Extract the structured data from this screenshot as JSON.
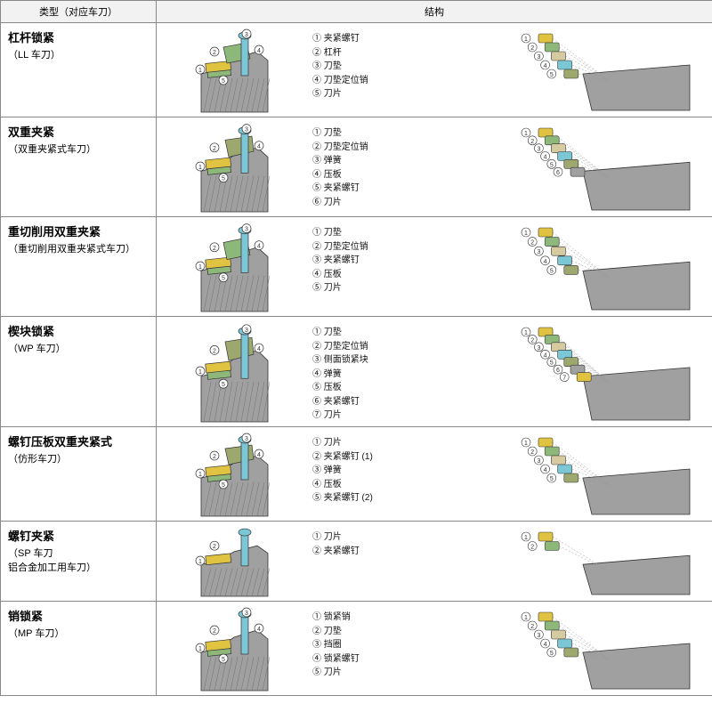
{
  "headers": {
    "type": "类型（对应车刀）",
    "structure": "结构"
  },
  "colors": {
    "yellow": "#e0c340",
    "cyan": "#7bc7d6",
    "green": "#8db87a",
    "gray": "#a0a0a0",
    "dark": "#4a4a4a",
    "outline": "#333",
    "beige": "#d6cba0",
    "olive": "#9ca86e"
  },
  "rows": [
    {
      "title": "杠杆锁紧",
      "subtitle": "（LL 车刀）",
      "height": 106,
      "labels": [
        "① 夹紧螺钉",
        "② 杠杆",
        "③ 刀垫",
        "④ 刀垫定位销",
        "⑤ 刀片"
      ]
    },
    {
      "title": "双重夹紧",
      "subtitle": "（双重夹紧式车刀）",
      "height": 112,
      "labels": [
        "① 刀垫",
        "② 刀垫定位销",
        "③ 弹簧",
        "④ 压板",
        "⑤ 夹紧螺钉",
        "⑥ 刀片"
      ]
    },
    {
      "title": "重切削用双重夹紧",
      "subtitle": "（重切削用双重夹紧式车刀）",
      "height": 112,
      "labels": [
        "① 刀垫",
        "② 刀垫定位销",
        "③ 夹紧螺钉",
        "④ 压板",
        "⑤ 刀片"
      ]
    },
    {
      "title": "楔块锁紧",
      "subtitle": "（WP 车刀）",
      "height": 124,
      "labels": [
        "① 刀垫",
        "② 刀垫定位销",
        "③ 侧面锁紧块",
        "④ 弹簧",
        "⑤ 压板",
        "⑥ 夹紧螺钉",
        "⑦ 刀片"
      ]
    },
    {
      "title": "螺钉压板双重夹紧式",
      "subtitle": "（仿形车刀）",
      "height": 106,
      "labels": [
        "① 刀片",
        "② 夹紧螺钉 (1)",
        "③ 弹簧",
        "④ 压板",
        "⑤ 夹紧螺钉 (2)"
      ]
    },
    {
      "title": "螺钉夹紧",
      "subtitle": "（SP 车刀<br>铝合金加工用车刀）",
      "height": 90,
      "labels": [
        "① 刀片",
        "② 夹紧螺钉"
      ]
    },
    {
      "title": "销锁紧",
      "subtitle": "（MP 车刀）",
      "height": 106,
      "labels": [
        "① 锁紧销",
        "② 刀垫",
        "③ 挡圈",
        "④ 锁紧螺钉",
        "⑤ 刀片"
      ]
    }
  ]
}
